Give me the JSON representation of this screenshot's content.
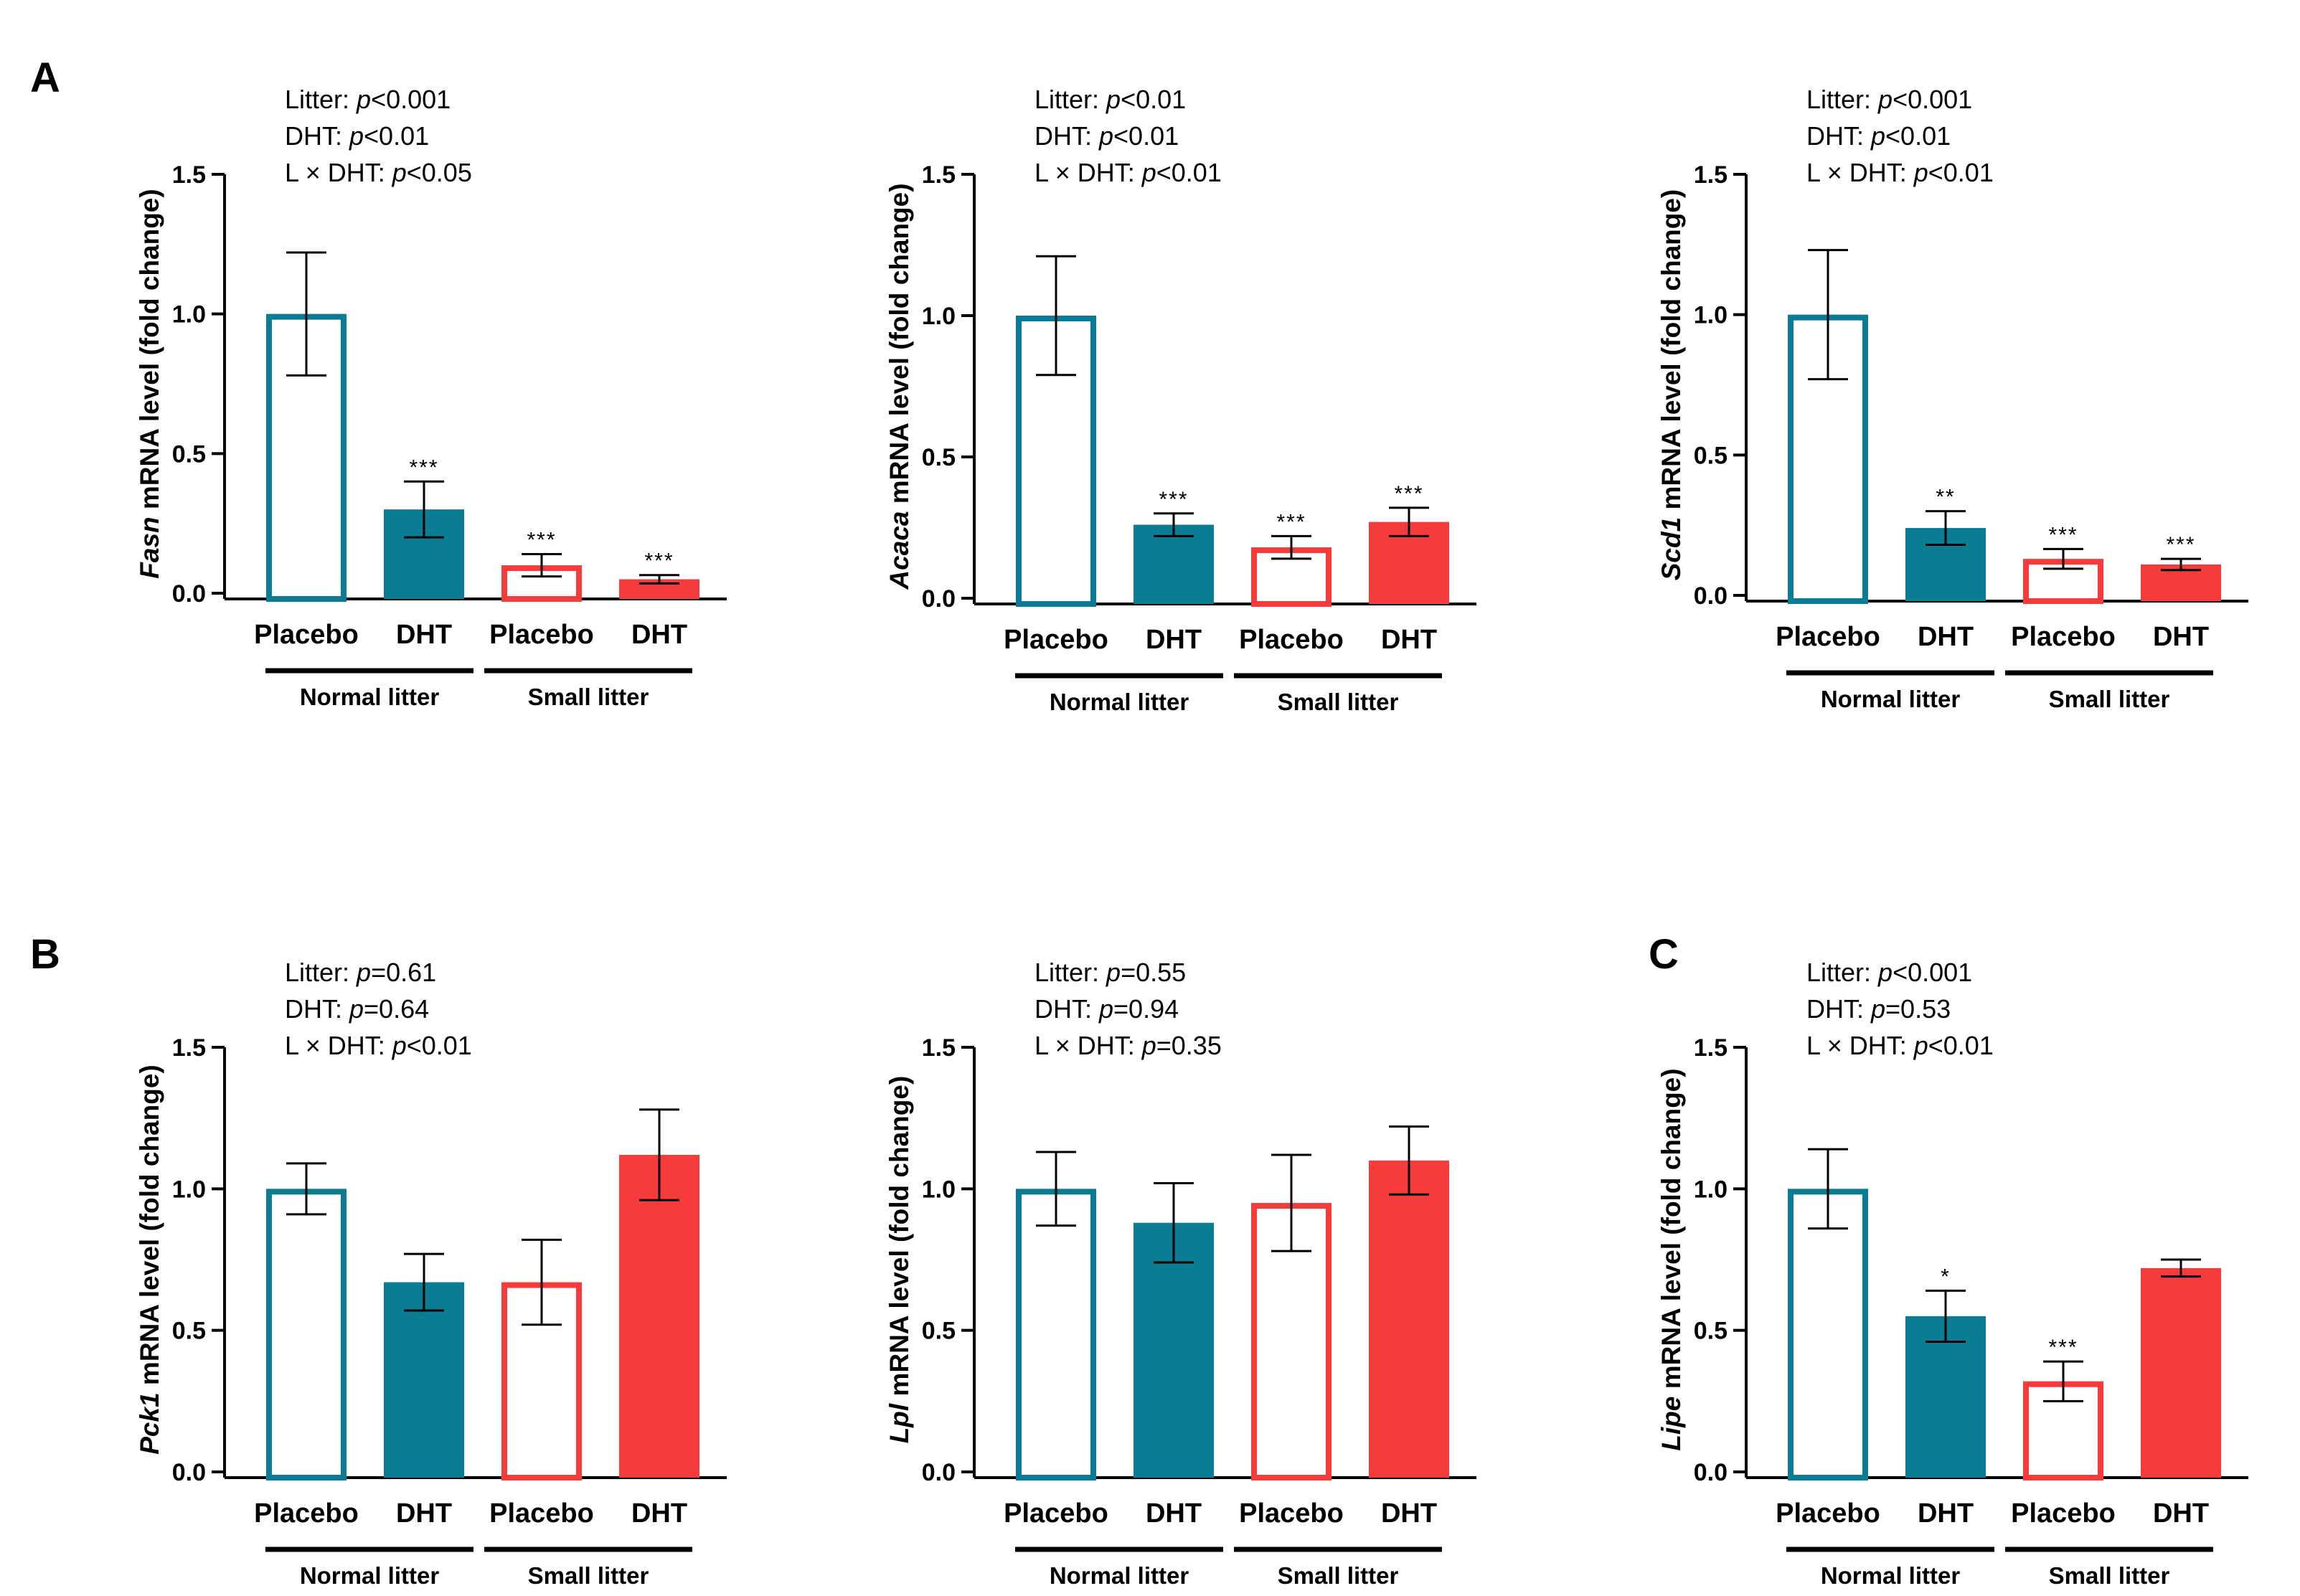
{
  "figure": {
    "colors": {
      "normal": "#0a7c94",
      "small": "#f53b3b",
      "axis": "#000000"
    },
    "groups": [
      "Normal litter",
      "Small litter"
    ]
  },
  "chart_data": [
    {
      "type": "bar",
      "panel_letter": "A",
      "gene": "Fasn",
      "ylabel_suffix": " mRNA level (fold change)",
      "stats": [
        {
          "name": "Litter: ",
          "p": "p",
          "value": "<0.001"
        },
        {
          "name": "DHT: ",
          "p": "p",
          "value": "<0.01"
        },
        {
          "name": "L × DHT: ",
          "p": "p",
          "value": "<0.05"
        }
      ],
      "categories": [
        "Placebo",
        "DHT",
        "Placebo",
        "DHT"
      ],
      "groups": [
        "Normal litter",
        "Small litter"
      ],
      "values": [
        1.0,
        0.3,
        0.1,
        0.05
      ],
      "errors": [
        0.22,
        0.1,
        0.04,
        0.015
      ],
      "significance": [
        "",
        "***",
        "***",
        "***"
      ],
      "ylim": [
        0,
        1.5
      ],
      "yticks": [
        "0.0",
        "0.5",
        "1.0",
        "1.5"
      ]
    },
    {
      "type": "bar",
      "panel_letter": "",
      "gene": "Acaca",
      "ylabel_suffix": " mRNA level (fold change)",
      "stats": [
        {
          "name": "Litter: ",
          "p": "p",
          "value": "<0.01"
        },
        {
          "name": "DHT: ",
          "p": "p",
          "value": "<0.01"
        },
        {
          "name": "L × DHT: ",
          "p": "p",
          "value": "<0.01"
        }
      ],
      "categories": [
        "Placebo",
        "DHT",
        "Placebo",
        "DHT"
      ],
      "groups": [
        "Normal litter",
        "Small litter"
      ],
      "values": [
        1.0,
        0.26,
        0.18,
        0.27
      ],
      "errors": [
        0.21,
        0.04,
        0.04,
        0.05
      ],
      "significance": [
        "",
        "***",
        "***",
        "***"
      ],
      "ylim": [
        0,
        1.5
      ],
      "yticks": [
        "0.0",
        "0.5",
        "1.0",
        "1.5"
      ]
    },
    {
      "type": "bar",
      "panel_letter": "",
      "gene": "Scd1",
      "ylabel_suffix": " mRNA level (fold change)",
      "stats": [
        {
          "name": "Litter: ",
          "p": "p",
          "value": "<0.001"
        },
        {
          "name": "DHT: ",
          "p": "p",
          "value": "<0.01"
        },
        {
          "name": "L × DHT: ",
          "p": "p",
          "value": "<0.01"
        }
      ],
      "categories": [
        "Placebo",
        "DHT",
        "Placebo",
        "DHT"
      ],
      "groups": [
        "Normal litter",
        "Small litter"
      ],
      "values": [
        1.0,
        0.24,
        0.13,
        0.11
      ],
      "errors": [
        0.23,
        0.06,
        0.035,
        0.02
      ],
      "significance": [
        "",
        "**",
        "***",
        "***"
      ],
      "ylim": [
        0,
        1.5
      ],
      "yticks": [
        "0.0",
        "0.5",
        "1.0",
        "1.5"
      ]
    },
    {
      "type": "bar",
      "panel_letter": "B",
      "gene": "Pck1",
      "ylabel_suffix": " mRNA level (fold change)",
      "stats": [
        {
          "name": "Litter: ",
          "p": "p",
          "value": "=0.61"
        },
        {
          "name": "DHT: ",
          "p": "p",
          "value": "=0.64"
        },
        {
          "name": "L × DHT: ",
          "p": "p",
          "value": "<0.01"
        }
      ],
      "categories": [
        "Placebo",
        "DHT",
        "Placebo",
        "DHT"
      ],
      "groups": [
        "Normal litter",
        "Small litter"
      ],
      "values": [
        1.0,
        0.67,
        0.67,
        1.12
      ],
      "errors": [
        0.09,
        0.1,
        0.15,
        0.16
      ],
      "significance": [
        "",
        "",
        "",
        ""
      ],
      "ylim": [
        0,
        1.5
      ],
      "yticks": [
        "0.0",
        "0.5",
        "1.0",
        "1.5"
      ]
    },
    {
      "type": "bar",
      "panel_letter": "",
      "gene": "Lpl",
      "ylabel_suffix": " mRNA level (fold change)",
      "stats": [
        {
          "name": "Litter: ",
          "p": "p",
          "value": "=0.55"
        },
        {
          "name": "DHT: ",
          "p": "p",
          "value": "=0.94"
        },
        {
          "name": "L × DHT: ",
          "p": "p",
          "value": "=0.35"
        }
      ],
      "categories": [
        "Placebo",
        "DHT",
        "Placebo",
        "DHT"
      ],
      "groups": [
        "Normal litter",
        "Small litter"
      ],
      "values": [
        1.0,
        0.88,
        0.95,
        1.1
      ],
      "errors": [
        0.13,
        0.14,
        0.17,
        0.12
      ],
      "significance": [
        "",
        "",
        "",
        ""
      ],
      "ylim": [
        0,
        1.5
      ],
      "yticks": [
        "0.0",
        "0.5",
        "1.0",
        "1.5"
      ]
    },
    {
      "type": "bar",
      "panel_letter": "C",
      "gene": "Lipe",
      "ylabel_suffix": " mRNA level (fold change)",
      "stats": [
        {
          "name": "Litter: ",
          "p": "p",
          "value": "<0.001"
        },
        {
          "name": "DHT: ",
          "p": "p",
          "value": "=0.53"
        },
        {
          "name": "L × DHT: ",
          "p": "p",
          "value": "<0.01"
        }
      ],
      "categories": [
        "Placebo",
        "DHT",
        "Placebo",
        "DHT"
      ],
      "groups": [
        "Normal litter",
        "Small litter"
      ],
      "values": [
        1.0,
        0.55,
        0.32,
        0.72
      ],
      "errors": [
        0.14,
        0.09,
        0.07,
        0.03
      ],
      "significance": [
        "",
        "*",
        "***",
        ""
      ],
      "ylim": [
        0,
        1.5
      ],
      "yticks": [
        "0.0",
        "0.5",
        "1.0",
        "1.5"
      ]
    }
  ]
}
